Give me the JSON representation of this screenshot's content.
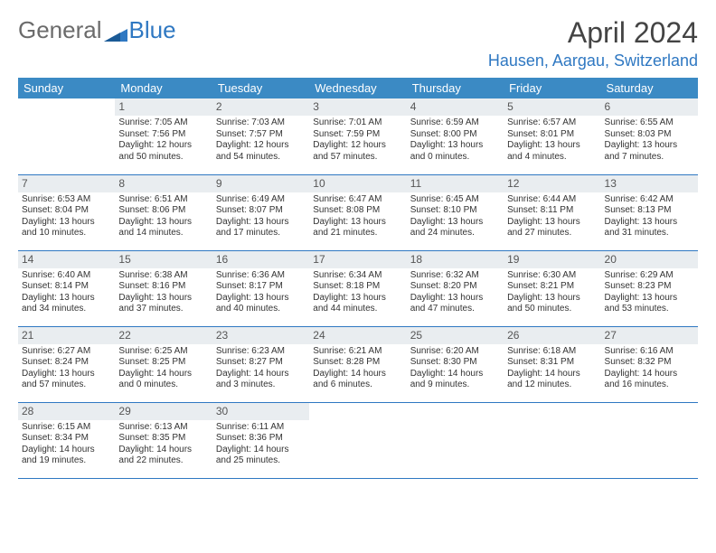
{
  "brand": {
    "part1": "General",
    "part2": "Blue"
  },
  "title": "April 2024",
  "location": "Hausen, Aargau, Switzerland",
  "colors": {
    "header_bg": "#3b8ac4",
    "header_text": "#ffffff",
    "row_border": "#2f78c2",
    "daynum_bg": "#e9edf0",
    "daynum_text": "#555555",
    "body_text": "#333333",
    "title_text": "#444444",
    "location_text": "#2f78c2",
    "page_bg": "#ffffff"
  },
  "typography": {
    "title_fontsize": 32,
    "location_fontsize": 18,
    "header_fontsize": 13,
    "cell_fontsize": 10,
    "daynum_fontsize": 12
  },
  "layout": {
    "cols": 7,
    "rows": 5,
    "first_weekday_index": 1
  },
  "weekdays": [
    "Sunday",
    "Monday",
    "Tuesday",
    "Wednesday",
    "Thursday",
    "Friday",
    "Saturday"
  ],
  "days": [
    {
      "n": 1,
      "sunrise": "7:05 AM",
      "sunset": "7:56 PM",
      "daylight": "12 hours and 50 minutes."
    },
    {
      "n": 2,
      "sunrise": "7:03 AM",
      "sunset": "7:57 PM",
      "daylight": "12 hours and 54 minutes."
    },
    {
      "n": 3,
      "sunrise": "7:01 AM",
      "sunset": "7:59 PM",
      "daylight": "12 hours and 57 minutes."
    },
    {
      "n": 4,
      "sunrise": "6:59 AM",
      "sunset": "8:00 PM",
      "daylight": "13 hours and 0 minutes."
    },
    {
      "n": 5,
      "sunrise": "6:57 AM",
      "sunset": "8:01 PM",
      "daylight": "13 hours and 4 minutes."
    },
    {
      "n": 6,
      "sunrise": "6:55 AM",
      "sunset": "8:03 PM",
      "daylight": "13 hours and 7 minutes."
    },
    {
      "n": 7,
      "sunrise": "6:53 AM",
      "sunset": "8:04 PM",
      "daylight": "13 hours and 10 minutes."
    },
    {
      "n": 8,
      "sunrise": "6:51 AM",
      "sunset": "8:06 PM",
      "daylight": "13 hours and 14 minutes."
    },
    {
      "n": 9,
      "sunrise": "6:49 AM",
      "sunset": "8:07 PM",
      "daylight": "13 hours and 17 minutes."
    },
    {
      "n": 10,
      "sunrise": "6:47 AM",
      "sunset": "8:08 PM",
      "daylight": "13 hours and 21 minutes."
    },
    {
      "n": 11,
      "sunrise": "6:45 AM",
      "sunset": "8:10 PM",
      "daylight": "13 hours and 24 minutes."
    },
    {
      "n": 12,
      "sunrise": "6:44 AM",
      "sunset": "8:11 PM",
      "daylight": "13 hours and 27 minutes."
    },
    {
      "n": 13,
      "sunrise": "6:42 AM",
      "sunset": "8:13 PM",
      "daylight": "13 hours and 31 minutes."
    },
    {
      "n": 14,
      "sunrise": "6:40 AM",
      "sunset": "8:14 PM",
      "daylight": "13 hours and 34 minutes."
    },
    {
      "n": 15,
      "sunrise": "6:38 AM",
      "sunset": "8:16 PM",
      "daylight": "13 hours and 37 minutes."
    },
    {
      "n": 16,
      "sunrise": "6:36 AM",
      "sunset": "8:17 PM",
      "daylight": "13 hours and 40 minutes."
    },
    {
      "n": 17,
      "sunrise": "6:34 AM",
      "sunset": "8:18 PM",
      "daylight": "13 hours and 44 minutes."
    },
    {
      "n": 18,
      "sunrise": "6:32 AM",
      "sunset": "8:20 PM",
      "daylight": "13 hours and 47 minutes."
    },
    {
      "n": 19,
      "sunrise": "6:30 AM",
      "sunset": "8:21 PM",
      "daylight": "13 hours and 50 minutes."
    },
    {
      "n": 20,
      "sunrise": "6:29 AM",
      "sunset": "8:23 PM",
      "daylight": "13 hours and 53 minutes."
    },
    {
      "n": 21,
      "sunrise": "6:27 AM",
      "sunset": "8:24 PM",
      "daylight": "13 hours and 57 minutes."
    },
    {
      "n": 22,
      "sunrise": "6:25 AM",
      "sunset": "8:25 PM",
      "daylight": "14 hours and 0 minutes."
    },
    {
      "n": 23,
      "sunrise": "6:23 AM",
      "sunset": "8:27 PM",
      "daylight": "14 hours and 3 minutes."
    },
    {
      "n": 24,
      "sunrise": "6:21 AM",
      "sunset": "8:28 PM",
      "daylight": "14 hours and 6 minutes."
    },
    {
      "n": 25,
      "sunrise": "6:20 AM",
      "sunset": "8:30 PM",
      "daylight": "14 hours and 9 minutes."
    },
    {
      "n": 26,
      "sunrise": "6:18 AM",
      "sunset": "8:31 PM",
      "daylight": "14 hours and 12 minutes."
    },
    {
      "n": 27,
      "sunrise": "6:16 AM",
      "sunset": "8:32 PM",
      "daylight": "14 hours and 16 minutes."
    },
    {
      "n": 28,
      "sunrise": "6:15 AM",
      "sunset": "8:34 PM",
      "daylight": "14 hours and 19 minutes."
    },
    {
      "n": 29,
      "sunrise": "6:13 AM",
      "sunset": "8:35 PM",
      "daylight": "14 hours and 22 minutes."
    },
    {
      "n": 30,
      "sunrise": "6:11 AM",
      "sunset": "8:36 PM",
      "daylight": "14 hours and 25 minutes."
    }
  ],
  "labels": {
    "sunrise": "Sunrise:",
    "sunset": "Sunset:",
    "daylight": "Daylight:"
  }
}
